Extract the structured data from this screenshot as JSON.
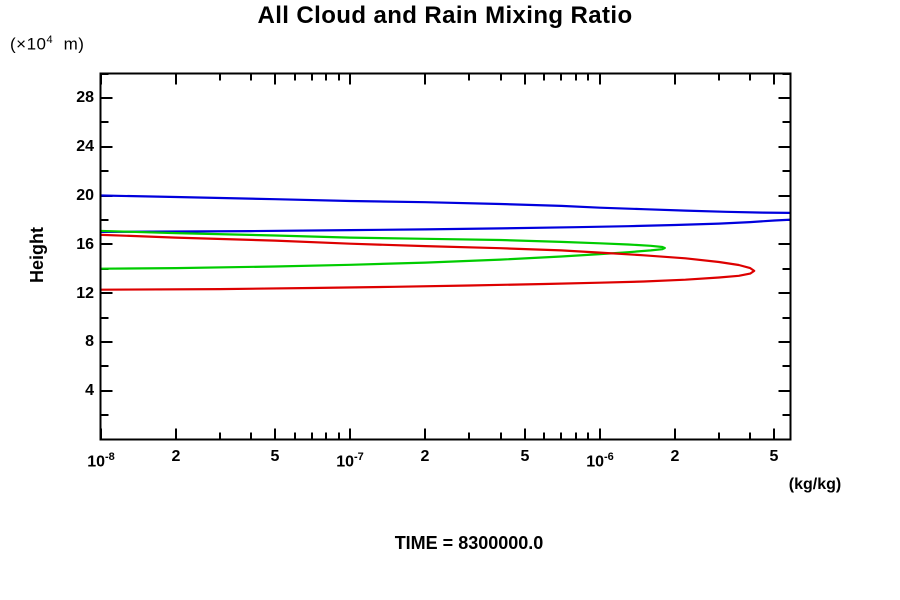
{
  "title": "All Cloud and Rain Mixing Ratio",
  "y_axis_unit": {
    "prefix": "(×10",
    "exponent": "4",
    "suffix": "  m)"
  },
  "y_axis_label": "Height",
  "x_axis_unit": "(kg/kg)",
  "time_label": "TIME = 8300000.0",
  "colors": {
    "background": "#ffffff",
    "axis": "#000000",
    "series_blue": "#0000dd",
    "series_green": "#00cc00",
    "series_red": "#dd0000"
  },
  "chart_data": {
    "type": "line",
    "title": "All Cloud and Rain Mixing Ratio",
    "xlabel": "(kg/kg)",
    "ylabel": "Height (×10^4 m)",
    "x_scale": "log",
    "xlim": [
      1e-08,
      5.8e-06
    ],
    "ylim": [
      0,
      30
    ],
    "grid": false,
    "legend": "none",
    "annotations": [
      "TIME = 8300000.0"
    ],
    "units": {
      "x": "kg/kg",
      "y": "×10^4 m"
    },
    "y_major_ticks": [
      4,
      8,
      12,
      16,
      20,
      24,
      28
    ],
    "y_minor_ticks": [
      2,
      6,
      10,
      14,
      18,
      22,
      26,
      30
    ],
    "x_major_ticks": [
      {
        "v": 1e-08,
        "base": "10",
        "exp": "-8"
      },
      {
        "v": 2e-08,
        "label": "2"
      },
      {
        "v": 5e-08,
        "label": "5"
      },
      {
        "v": 1e-07,
        "base": "10",
        "exp": "-7"
      },
      {
        "v": 2e-07,
        "label": "2"
      },
      {
        "v": 5e-07,
        "label": "5"
      },
      {
        "v": 1e-06,
        "base": "10",
        "exp": "-6"
      },
      {
        "v": 2e-06,
        "label": "2"
      },
      {
        "v": 5e-06,
        "label": "5"
      }
    ],
    "x_minor_ticks": [
      3e-08,
      4e-08,
      6e-08,
      7e-08,
      8e-08,
      9e-08,
      3e-07,
      4e-07,
      6e-07,
      7e-07,
      8e-07,
      9e-07,
      3e-06,
      4e-06
    ],
    "series": [
      {
        "name": "blue-profile",
        "color": "#0000dd",
        "clipped_at_right": true,
        "paths": [
          [
            [
              1e-08,
              20.0
            ],
            [
              2e-08,
              19.88
            ],
            [
              5e-08,
              19.7
            ],
            [
              1e-07,
              19.55
            ],
            [
              2e-07,
              19.45
            ],
            [
              4e-07,
              19.3
            ],
            [
              7e-07,
              19.15
            ],
            [
              1e-06,
              19.0
            ],
            [
              1.5e-06,
              18.88
            ],
            [
              2.2e-06,
              18.76
            ],
            [
              3.2e-06,
              18.66
            ],
            [
              4.5e-06,
              18.6
            ],
            [
              5.8e-06,
              18.57
            ]
          ],
          [
            [
              5.8e-06,
              18.02
            ],
            [
              5e-06,
              17.95
            ],
            [
              4e-06,
              17.82
            ],
            [
              3e-06,
              17.7
            ],
            [
              2e-06,
              17.58
            ],
            [
              1.3e-06,
              17.48
            ],
            [
              8e-07,
              17.4
            ],
            [
              4e-07,
              17.3
            ],
            [
              2e-07,
              17.22
            ],
            [
              1e-07,
              17.16
            ],
            [
              4e-08,
              17.08
            ],
            [
              1e-08,
              17.02
            ]
          ]
        ]
      },
      {
        "name": "green-profile",
        "color": "#00cc00",
        "clipped_at_right": false,
        "paths": [
          [
            [
              1e-08,
              17.1
            ],
            [
              2e-08,
              16.92
            ],
            [
              5e-08,
              16.72
            ],
            [
              1e-07,
              16.55
            ],
            [
              2e-07,
              16.45
            ],
            [
              4e-07,
              16.35
            ],
            [
              7e-07,
              16.2
            ],
            [
              1e-06,
              16.08
            ],
            [
              1.3e-06,
              15.98
            ],
            [
              1.6e-06,
              15.88
            ],
            [
              1.78e-06,
              15.78
            ],
            [
              1.82e-06,
              15.7
            ],
            [
              1.78e-06,
              15.6
            ],
            [
              1.6e-06,
              15.5
            ],
            [
              1.3e-06,
              15.35
            ],
            [
              1e-06,
              15.2
            ],
            [
              7e-07,
              15.0
            ],
            [
              4e-07,
              14.75
            ],
            [
              2e-07,
              14.5
            ],
            [
              1e-07,
              14.32
            ],
            [
              5e-08,
              14.18
            ],
            [
              2e-08,
              14.05
            ],
            [
              1e-08,
              14.0
            ]
          ]
        ]
      },
      {
        "name": "red-profile",
        "color": "#dd0000",
        "clipped_at_right": false,
        "paths": [
          [
            [
              1e-08,
              16.78
            ],
            [
              2e-08,
              16.55
            ],
            [
              5e-08,
              16.3
            ],
            [
              1e-07,
              16.05
            ],
            [
              2e-07,
              15.85
            ],
            [
              4e-07,
              15.68
            ],
            [
              7e-07,
              15.5
            ],
            [
              1e-06,
              15.32
            ],
            [
              1.5e-06,
              15.1
            ],
            [
              2.2e-06,
              14.85
            ],
            [
              3e-06,
              14.55
            ],
            [
              3.6e-06,
              14.3
            ],
            [
              4e-06,
              14.05
            ],
            [
              4.15e-06,
              13.82
            ],
            [
              4e-06,
              13.6
            ],
            [
              3.6e-06,
              13.42
            ],
            [
              3e-06,
              13.28
            ],
            [
              2.2e-06,
              13.1
            ],
            [
              1.5e-06,
              12.95
            ],
            [
              1e-06,
              12.85
            ],
            [
              6e-07,
              12.75
            ],
            [
              3e-07,
              12.62
            ],
            [
              1.5e-07,
              12.52
            ],
            [
              7e-08,
              12.42
            ],
            [
              3e-08,
              12.33
            ],
            [
              1e-08,
              12.28
            ]
          ]
        ]
      }
    ]
  }
}
